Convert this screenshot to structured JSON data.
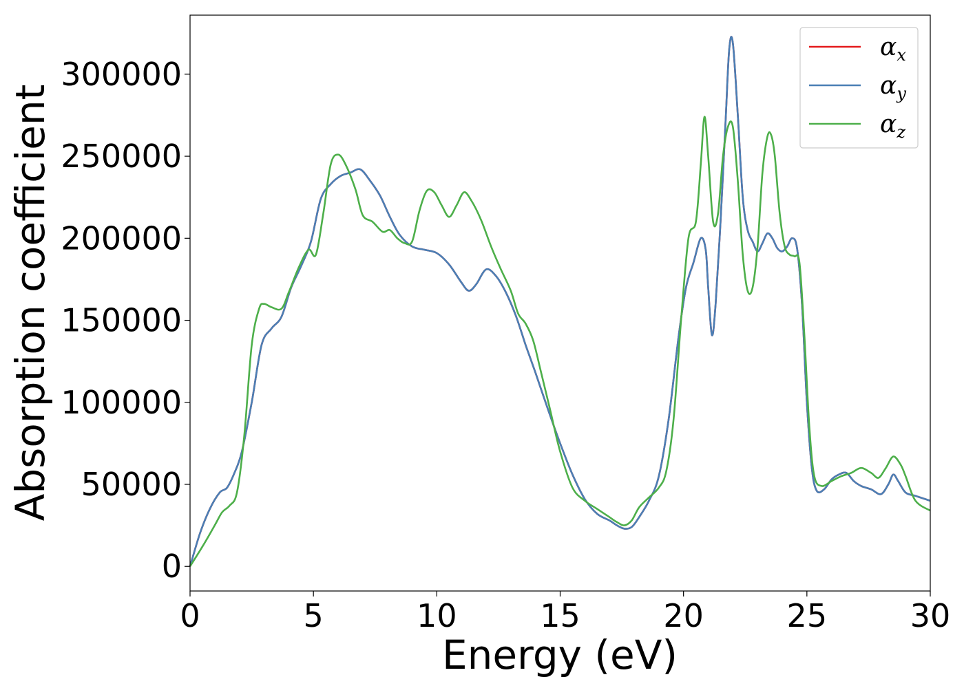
{
  "chart_data": {
    "type": "line",
    "title": "",
    "xlabel": "Energy (eV)",
    "ylabel": "Absorption coefficient",
    "xlim": [
      0,
      30
    ],
    "ylim": [
      -15000,
      336000
    ],
    "xticks": [
      0,
      5,
      10,
      15,
      20,
      25,
      30
    ],
    "yticks": [
      0,
      50000,
      100000,
      150000,
      200000,
      250000,
      300000
    ],
    "grid": false,
    "legend_position": "top-right",
    "series": [
      {
        "name": "α",
        "name_sub": "x",
        "color": "#e41a1c",
        "x": [
          0,
          0.4,
          0.8,
          1.2,
          1.5,
          1.8,
          2.1,
          2.5,
          2.9,
          3.3,
          3.7,
          4.1,
          4.5,
          4.9,
          5.3,
          5.7,
          6.1,
          6.5,
          6.9,
          7.3,
          7.7,
          8.1,
          8.5,
          9.0,
          9.5,
          10.0,
          10.5,
          11.0,
          11.3,
          11.6,
          12.0,
          12.4,
          12.8,
          13.2,
          13.6,
          14.0,
          14.5,
          15.0,
          15.5,
          16.0,
          16.5,
          17.0,
          17.3,
          17.6,
          17.9,
          18.2,
          18.6,
          19.0,
          19.4,
          19.8,
          20.1,
          20.4,
          20.7,
          20.9,
          21.0,
          21.15,
          21.3,
          21.5,
          21.7,
          21.85,
          22.0,
          22.2,
          22.4,
          22.6,
          22.8,
          23.0,
          23.2,
          23.4,
          23.6,
          23.8,
          24.0,
          24.2,
          24.4,
          24.6,
          24.8,
          25.0,
          25.2,
          25.4,
          25.7,
          26.0,
          26.3,
          26.6,
          26.9,
          27.2,
          27.6,
          28.0,
          28.3,
          28.5,
          28.7,
          29.0,
          29.4,
          30.0
        ],
        "y": [
          0,
          20000,
          35000,
          45000,
          48000,
          57000,
          70000,
          100000,
          135000,
          145000,
          152000,
          170000,
          183000,
          198000,
          224000,
          233000,
          238000,
          240000,
          242000,
          235000,
          226000,
          213000,
          202000,
          195000,
          193000,
          191000,
          184000,
          173000,
          168000,
          172000,
          181000,
          177000,
          167000,
          153000,
          135000,
          118000,
          96000,
          75000,
          56000,
          41000,
          32000,
          28000,
          25000,
          23000,
          24000,
          30000,
          40000,
          55000,
          90000,
          140000,
          170000,
          185000,
          200000,
          193000,
          170000,
          141000,
          160000,
          210000,
          270000,
          315000,
          319000,
          275000,
          225000,
          205000,
          198000,
          192000,
          197000,
          203000,
          200000,
          194000,
          192000,
          195000,
          200000,
          194000,
          160000,
          100000,
          60000,
          46000,
          47000,
          53000,
          56000,
          57000,
          52000,
          49000,
          47000,
          44000,
          50000,
          56000,
          52000,
          45000,
          43000,
          40000
        ]
      },
      {
        "name": "α",
        "name_sub": "y",
        "color": "#4a7fb5",
        "x": [
          0,
          0.4,
          0.8,
          1.2,
          1.5,
          1.8,
          2.1,
          2.5,
          2.9,
          3.3,
          3.7,
          4.1,
          4.5,
          4.9,
          5.3,
          5.7,
          6.1,
          6.5,
          6.9,
          7.3,
          7.7,
          8.1,
          8.5,
          9.0,
          9.5,
          10.0,
          10.5,
          11.0,
          11.3,
          11.6,
          12.0,
          12.4,
          12.8,
          13.2,
          13.6,
          14.0,
          14.5,
          15.0,
          15.5,
          16.0,
          16.5,
          17.0,
          17.3,
          17.6,
          17.9,
          18.2,
          18.6,
          19.0,
          19.4,
          19.8,
          20.1,
          20.4,
          20.7,
          20.9,
          21.0,
          21.15,
          21.3,
          21.5,
          21.7,
          21.85,
          22.0,
          22.2,
          22.4,
          22.6,
          22.8,
          23.0,
          23.2,
          23.4,
          23.6,
          23.8,
          24.0,
          24.2,
          24.4,
          24.6,
          24.8,
          25.0,
          25.2,
          25.4,
          25.7,
          26.0,
          26.3,
          26.6,
          26.9,
          27.2,
          27.6,
          28.0,
          28.3,
          28.5,
          28.7,
          29.0,
          29.4,
          30.0
        ],
        "y": [
          0,
          20000,
          35000,
          45000,
          48000,
          57000,
          70000,
          100000,
          135000,
          145000,
          152000,
          170000,
          183000,
          198000,
          224000,
          233000,
          238000,
          240000,
          242000,
          235000,
          226000,
          213000,
          202000,
          195000,
          193000,
          191000,
          184000,
          173000,
          168000,
          172000,
          181000,
          177000,
          167000,
          153000,
          135000,
          118000,
          96000,
          75000,
          56000,
          41000,
          32000,
          28000,
          25000,
          23000,
          24000,
          30000,
          40000,
          55000,
          90000,
          140000,
          170000,
          185000,
          200000,
          193000,
          170000,
          141000,
          160000,
          210000,
          270000,
          315000,
          319000,
          275000,
          225000,
          205000,
          198000,
          192000,
          197000,
          203000,
          200000,
          194000,
          192000,
          195000,
          200000,
          194000,
          160000,
          100000,
          60000,
          46000,
          47000,
          53000,
          56000,
          57000,
          52000,
          49000,
          47000,
          44000,
          50000,
          56000,
          52000,
          45000,
          43000,
          40000
        ]
      },
      {
        "name": "α",
        "name_sub": "z",
        "color": "#4daf4a",
        "x": [
          0,
          0.5,
          1.0,
          1.3,
          1.6,
          1.9,
          2.2,
          2.5,
          2.8,
          3.0,
          3.3,
          3.7,
          4.0,
          4.4,
          4.8,
          5.1,
          5.4,
          5.7,
          6.0,
          6.3,
          6.7,
          7.0,
          7.4,
          7.8,
          8.1,
          8.4,
          8.7,
          9.0,
          9.3,
          9.6,
          9.9,
          10.2,
          10.5,
          10.8,
          11.1,
          11.4,
          11.8,
          12.2,
          12.6,
          13.0,
          13.3,
          13.6,
          13.9,
          14.2,
          14.6,
          15.0,
          15.5,
          16.0,
          16.5,
          17.0,
          17.3,
          17.6,
          17.9,
          18.2,
          18.6,
          19.0,
          19.3,
          19.6,
          19.9,
          20.2,
          20.5,
          20.7,
          20.85,
          21.0,
          21.2,
          21.4,
          21.6,
          21.8,
          22.0,
          22.2,
          22.4,
          22.6,
          22.8,
          23.0,
          23.2,
          23.4,
          23.55,
          23.7,
          23.9,
          24.1,
          24.3,
          24.5,
          24.7,
          24.9,
          25.1,
          25.3,
          25.6,
          26.0,
          26.4,
          26.8,
          27.2,
          27.6,
          27.9,
          28.2,
          28.5,
          28.8,
          29.0,
          29.4,
          30.0
        ],
        "y": [
          0,
          12000,
          25000,
          33000,
          37000,
          45000,
          80000,
          135000,
          157000,
          160000,
          158000,
          157000,
          167000,
          182000,
          193000,
          190000,
          215000,
          245000,
          251000,
          245000,
          230000,
          214000,
          210000,
          204000,
          205000,
          200000,
          197000,
          198000,
          217000,
          229000,
          228000,
          220000,
          213000,
          220000,
          228000,
          223000,
          211000,
          195000,
          181000,
          168000,
          154000,
          148000,
          138000,
          120000,
          95000,
          70000,
          48000,
          40000,
          35000,
          30000,
          27000,
          25000,
          28000,
          36000,
          42000,
          48000,
          58000,
          90000,
          150000,
          200000,
          210000,
          245000,
          274000,
          250000,
          210000,
          215000,
          250000,
          268000,
          268000,
          235000,
          190000,
          168000,
          170000,
          195000,
          240000,
          262000,
          263000,
          250000,
          215000,
          195000,
          190000,
          189000,
          185000,
          140000,
          85000,
          55000,
          49000,
          52000,
          55000,
          57000,
          60000,
          57000,
          54000,
          60000,
          67000,
          62000,
          55000,
          40000,
          34000
        ]
      }
    ]
  }
}
